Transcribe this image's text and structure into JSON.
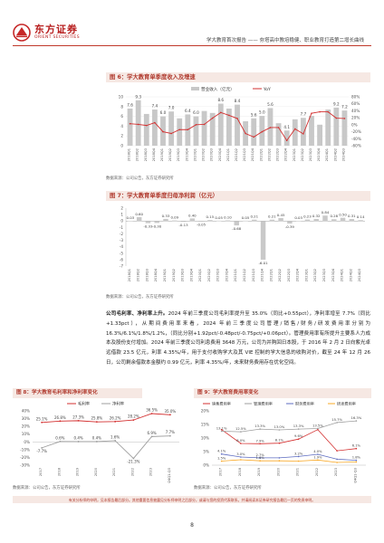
{
  "header": {
    "logo_cn": "东方证券",
    "logo_en": "ORIENT SECURITIES",
    "report_title": "学大教育首次报告 —— 夯塔高中教培稳健、职业教育打造第二增长曲线"
  },
  "figure6": {
    "title": "图 6：学大教育单季度收入及增速",
    "source": "数据来源：公司公告，东方证券研究所"
  },
  "figure7": {
    "title": "图 7：学大教育单季度归母净利润（亿元）",
    "source": "数据来源：公司公告，东方证券研究所"
  },
  "figure8": {
    "title": "图 8：学大教育毛利率和净利率变化",
    "source": "数据来源：公司公告，东方证券研究所"
  },
  "figure9": {
    "title": "图 9：学大教育费用率变化",
    "source": "数据来源：公司公告，东方证券研究所"
  },
  "body": {
    "lead": "公司毛利率、净利率上升。",
    "text": "2024 年前三季度公司毛利率提升至 35.0%（同比+0.55pct），净利率增至 7.7%（同比+1.33pct），从期间费用率来看，2024 年前三季度公司管理/销售/财务/研发费用率分别为 16.3%/6.1%/1.8%/1.2%，（同比分别+1.92pct/-0.48pct/-0.75pct/+0.06pct）。管理费用率有所提升主要系人力成本及股份支付增加。2024 年前三季度公司利息费用 3648 万元，公司为并购回日本股，于 2016 年 2 月 2 日向紫光卓远借款 23.5 亿元，利率 4.35%/年，用于支付收购学大及其 VIE 控制的学大信息的收购对价，截至 24 年 12 月 26 日，公司剩余借款本金额约 0.99 亿元，利率 4.35%/年，未来财务费用存在优化空间。"
  },
  "footer": {
    "disclaimer": "有关分析师的申明，见本报告最后部分。其他重要信息披露见分析师申明之后部分，或请与您的投资代表联系。并请阅读本证券研究报告最后一页的免责申明。",
    "page_number": "8"
  },
  "chart_data": [
    {
      "type": "bar",
      "id": "fig6",
      "categories": [
        "2018Q1",
        "2018Q2",
        "2018Q3",
        "2018Q4",
        "2019Q1",
        "2019Q2",
        "2019Q3",
        "2019Q4",
        "2020Q1",
        "2020Q2",
        "2020Q3",
        "2020Q4",
        "2021Q1",
        "2021Q2",
        "2021Q3",
        "2021Q4",
        "2022Q1",
        "2022Q2",
        "2022Q3",
        "2022Q4",
        "2023Q1",
        "2023Q2",
        "2023Q3",
        "2023Q4",
        "2024Q1",
        "2024Q2",
        "2024Q3"
      ],
      "tick_labels": [
        "2018Q1",
        "2018Q2",
        "2018Q3",
        "2018Q4",
        "2019Q1",
        "2019Q2",
        "2019Q3",
        "2019Q4",
        "2020Q1",
        "2020Q2",
        "2020Q3",
        "2020Q4",
        "2021Q1",
        "2021Q2",
        "2021Q3",
        "2021Q4",
        "2022Q1",
        "2022Q2",
        "2022Q3",
        "2022Q4",
        "2023Q1",
        "2023Q2",
        "2023Q3",
        "2023Q4",
        "2024Q1",
        "2024Q2",
        "2024Q3"
      ],
      "series": [
        {
          "name": "营业收入（亿元）",
          "values": [
            7.6,
            9.3,
            6.5,
            7.4,
            6.0,
            7.0,
            5.6,
            6.4,
            6.0,
            7.1,
            6.7,
            8.6,
            7.6,
            8.4,
            5.0,
            5.6,
            6.1,
            7.7,
            4.6,
            3.1,
            5.4,
            5.7,
            6.1,
            4.3,
            7.4,
            7.8,
            7.2
          ],
          "axis": "left",
          "color": "#c8c8c8"
        },
        {
          "name": "YoY",
          "values": [
            3,
            1,
            -2,
            6,
            -20,
            -25,
            -14,
            -14,
            0,
            1,
            19,
            35,
            27,
            18,
            -25,
            -35,
            -20,
            -8,
            -8,
            -45,
            -12,
            -26,
            33,
            37,
            37,
            19,
            18
          ],
          "axis": "right",
          "color": "#d32f2f"
        }
      ],
      "data_labels": [
        "7.6",
        "9.3",
        "7.4",
        "6.0",
        "7.0",
        "6.4",
        "6.0",
        "8.6",
        "8.4",
        "5.6",
        "5.0",
        "5.6",
        "4.1",
        "7.7",
        "9.2",
        "7.2"
      ],
      "ylim": [
        0,
        10
      ],
      "y2lim": [
        -60,
        80
      ],
      "yticks": [
        "0",
        "2",
        "4",
        "6",
        "8",
        "10"
      ],
      "y2ticks": [
        "80%",
        "60%",
        "40%",
        "20%",
        "0%",
        "-20%",
        "-40%",
        "-60%"
      ],
      "legend": "top-center"
    },
    {
      "type": "bar",
      "id": "fig7",
      "categories": [
        "2018Q1",
        "2018Q2",
        "2018Q3",
        "2018Q4",
        "2019Q1",
        "2019Q2",
        "2019Q3",
        "2019Q4",
        "2020Q1",
        "2020Q2",
        "2020Q3",
        "2020Q4",
        "2021Q1",
        "2021Q2",
        "2021Q3",
        "2021Q4",
        "2022Q1",
        "2022Q2",
        "2022Q3",
        "2022Q4",
        "2023Q1",
        "2023Q2",
        "2023Q3",
        "2023Q4",
        "2024Q1",
        "2024Q2",
        "2024Q3"
      ],
      "tick_labels": [
        "2018Q1",
        "2018Q2",
        "2018Q3",
        "2018Q4",
        "2019Q1",
        "2019Q2",
        "2019Q3",
        "2019Q4",
        "2020Q1",
        "2020Q2",
        "2020Q3",
        "2020Q4",
        "2021Q1",
        "2021Q2",
        "2021Q3",
        "2021Q4",
        "2022Q1",
        "2022Q2",
        "2022Q3",
        "2022Q4",
        "2023Q1",
        "2023Q2",
        "2023Q3",
        "2023Q4",
        "2024Q1",
        "2024Q2",
        "2024Q3"
      ],
      "values": [
        0.03,
        0.6,
        -0.33,
        -0.3,
        0.33,
        0.09,
        -0.13,
        0.4,
        -0.05,
        0.15,
        0.05,
        0.1,
        -0.68,
        0.05,
        0.21,
        -6.01,
        0.21,
        0.45,
        -0.39,
        0.03,
        0.23,
        0.32,
        0.84,
        0.28,
        0.5,
        0.31,
        0.14
      ],
      "data_labels": [
        "0.03",
        "0.60",
        "-0.33",
        "-0.30",
        "0.33",
        "0.09",
        "-0.13",
        "0.40",
        "-0.05",
        "0.15",
        "0.05",
        "0.10",
        "-0.68",
        "0.05",
        "0.21",
        "-6.01",
        "0.21",
        "0.45",
        "-0.39",
        "0.03",
        "0.23",
        "0.32",
        "0.84",
        "0.28",
        "0.50",
        "0.31",
        "0.14"
      ],
      "ylim": [
        -7,
        2
      ],
      "yticks": [
        "2",
        "1",
        "0",
        "-1",
        "-2",
        "-3",
        "-4",
        "-5",
        "-6",
        "-7"
      ],
      "color": "#c9c9c9"
    },
    {
      "type": "line",
      "id": "fig8",
      "categories": [
        "2017",
        "2018",
        "2019",
        "2020",
        "2021",
        "2022",
        "2023",
        "2024Q1-Q3"
      ],
      "tick_labels": [
        "2017",
        "2018",
        "2019",
        "2020",
        "2021",
        "2022",
        "2023",
        "2024Q1-Q3"
      ],
      "series": [
        {
          "name": "毛利率",
          "values": [
            25.1,
            26.8,
            27.3,
            25.8,
            26.2,
            28.2,
            36.5,
            35.0
          ],
          "color": "#d32f2f"
        },
        {
          "name": "净利率",
          "values": [
            -7.7,
            0.6,
            0.4,
            0.4,
            1.6,
            -21.3,
            6.9,
            7.7
          ],
          "color": "#9e9e9e"
        }
      ],
      "data_labels_top": [
        "25.1%",
        "26.8%",
        "27.3%",
        "25.8%",
        "26.2%",
        "28.2%",
        "36.5%",
        "35.0%"
      ],
      "data_labels_bottom": [
        "-7.7%",
        "0.6%",
        "0.4%",
        "0.4%",
        "1.6%",
        "-21.3%",
        "6.9%",
        "7.7%"
      ],
      "ylim": [
        -30,
        40
      ],
      "yticks": [
        "40%",
        "30%",
        "20%",
        "10%",
        "0%",
        "-10%",
        "-20%",
        "-30%"
      ],
      "legend": "top-center"
    },
    {
      "type": "line",
      "id": "fig9",
      "categories": [
        "2017",
        "2018",
        "2019",
        "2020",
        "2021",
        "2022",
        "2023",
        "2024Q1-Q3"
      ],
      "tick_labels": [
        "2017",
        "2018",
        "2019",
        "2020",
        "2021",
        "2022",
        "2023",
        "2024Q1-Q3"
      ],
      "series": [
        {
          "name": "销售费用率",
          "values": [
            13.1,
            8.0,
            7.9,
            8.1,
            9.6,
            13.1,
            5.3,
            6.1
          ],
          "color": "#d32f2f"
        },
        {
          "name": "管理费用率",
          "values": [
            12.5,
            12.3,
            13.3,
            13.0,
            13.3,
            13.5,
            15.7,
            16.3
          ],
          "color": "#9e9e9e"
        },
        {
          "name": "财务费用率",
          "values": [
            4.1,
            3.0,
            2.7,
            2.7,
            3.2,
            4.0,
            2.2,
            1.8
          ],
          "color": "#5c6bc0"
        },
        {
          "name": "研发费用率",
          "values": [
            1.5,
            2.0,
            1.6,
            1.6,
            1.5,
            1.9,
            1.0,
            1.2
          ],
          "color": "#f9a825"
        }
      ],
      "data_labels": [
        "13.1%",
        "12.5%",
        "13.3%",
        "13.0%",
        "13.3%",
        "13.5%",
        "15.7%",
        "16.3%",
        "8.0%",
        "7.9%",
        "8.1%",
        "9.6%",
        "6.1%",
        "4.1%",
        "3.0%",
        "2.7%",
        "3.2%",
        "4.0%",
        "1.8%",
        "1.5%",
        "1.6%",
        "1.9%"
      ],
      "ylim": [
        0,
        20
      ],
      "yticks": [
        "20%",
        "15%",
        "10%",
        "5%",
        "0%"
      ],
      "legend": "top-center"
    }
  ]
}
